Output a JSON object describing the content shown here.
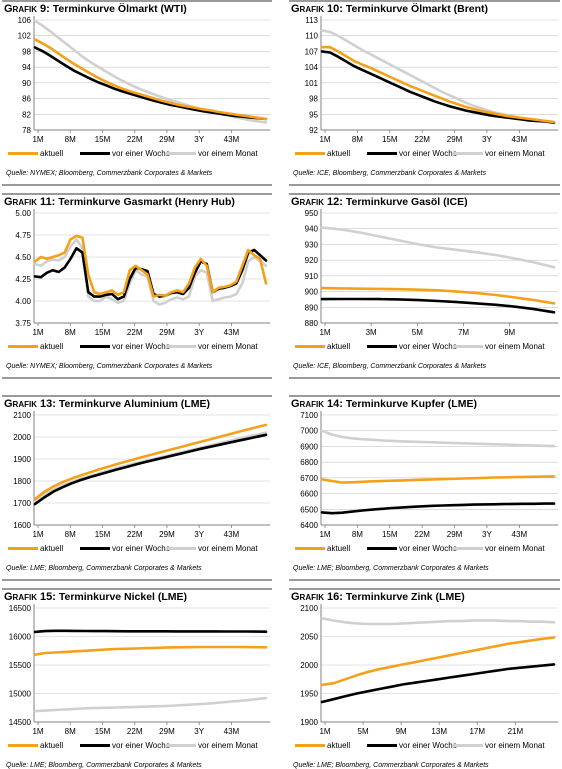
{
  "legend": {
    "current": "aktuell",
    "week": "vor einer Woche",
    "month": "vor einem Monat"
  },
  "colors": {
    "current": "#f5a01a",
    "week": "#000000",
    "month": "#d0d0d0",
    "axis": "#808080",
    "grid": "#c8c8c8"
  },
  "panels": [
    {
      "prefix": "Grafik 9:",
      "title": "Terminkurve Ölmarkt (WTI)",
      "source": "Quelle: NYMEX; Bloomberg, Commerzbank Corporates & Markets",
      "chart_data": {
        "type": "line",
        "x_ticks": [
          "1M",
          "8M",
          "15M",
          "22M",
          "29M",
          "3Y",
          "43M"
        ],
        "y_ticks": [
          "78",
          "82",
          "86",
          "90",
          "94",
          "98",
          "102",
          "106"
        ],
        "ylim": [
          78,
          106
        ],
        "series": [
          {
            "name": "aktuell",
            "values": [
              101.0,
              100.0,
              98.8,
              97.4,
              96.0,
              94.7,
              93.5,
              92.3,
              91.2,
              90.2,
              89.3,
              88.5,
              87.8,
              87.2,
              86.6,
              86.0,
              85.4,
              84.9,
              84.4,
              84.0,
              83.7,
              83.3,
              83.0,
              82.6,
              82.3,
              82.0,
              81.7,
              81.4,
              81.1,
              80.8
            ]
          },
          {
            "name": "vor einer Woche",
            "values": [
              99.0,
              98.0,
              96.8,
              95.5,
              94.2,
              93.0,
              92.0,
              91.0,
              90.1,
              89.3,
              88.5,
              87.8,
              87.2,
              86.6,
              86.0,
              85.4,
              84.9,
              84.4,
              84.0,
              83.6,
              83.2,
              82.8,
              82.5,
              82.2,
              81.9,
              81.6,
              81.4,
              81.2,
              81.0,
              80.8
            ]
          },
          {
            "name": "vor einem Monat",
            "values": [
              105.8,
              104.5,
              103.0,
              101.4,
              99.8,
              98.2,
              96.6,
              95.2,
              94.0,
              92.8,
              91.6,
              90.5,
              89.5,
              88.6,
              87.8,
              87.0,
              86.3,
              85.6,
              85.0,
              84.4,
              83.8,
              83.2,
              82.7,
              82.2,
              81.8,
              81.3,
              80.9,
              80.5,
              80.2,
              79.9
            ]
          }
        ]
      }
    },
    {
      "prefix": "Grafik 10:",
      "title": "Terminkurve Ölmarkt (Brent)",
      "source": "Quelle: ICE, Bloomberg, Commerzbank Corporates & Markets",
      "chart_data": {
        "type": "line",
        "x_ticks": [
          "1M",
          "8M",
          "15M",
          "22M",
          "29M",
          "3Y",
          "43M"
        ],
        "y_ticks": [
          "92",
          "95",
          "98",
          "101",
          "104",
          "107",
          "110",
          "113"
        ],
        "ylim": [
          92,
          113
        ],
        "series": [
          {
            "name": "aktuell",
            "values": [
              107.8,
              107.8,
              107.0,
              106.1,
              105.2,
              104.5,
              103.9,
              103.2,
              102.5,
              101.8,
              101.1,
              100.4,
              99.8,
              99.2,
              98.6,
              98.0,
              97.4,
              96.9,
              96.4,
              96.0,
              95.6,
              95.3,
              95.0,
              94.7,
              94.5,
              94.3,
              94.1,
              93.9,
              93.7,
              93.5
            ]
          },
          {
            "name": "vor einer Woche",
            "values": [
              107.0,
              106.8,
              106.0,
              105.1,
              104.2,
              103.5,
              102.8,
              102.1,
              101.4,
              100.7,
              100.0,
              99.3,
              98.7,
              98.1,
              97.5,
              97.0,
              96.5,
              96.1,
              95.7,
              95.4,
              95.1,
              94.8,
              94.6,
              94.4,
              94.2,
              94.0,
              93.8,
              93.7,
              93.6,
              93.4
            ]
          },
          {
            "name": "vor einem Monat",
            "values": [
              111.0,
              110.7,
              110.0,
              109.1,
              108.2,
              107.3,
              106.5,
              105.7,
              104.9,
              104.1,
              103.3,
              102.5,
              101.7,
              100.9,
              100.1,
              99.3,
              98.6,
              97.9,
              97.2,
              96.6,
              96.1,
              95.6,
              95.2,
              94.9,
              94.6,
              94.3,
              94.1,
              93.9,
              93.7,
              93.5
            ]
          }
        ]
      }
    },
    {
      "prefix": "Grafik 11:",
      "title": "Terminkurve Gasmarkt (Henry Hub)",
      "source": "Quelle: NYMEX; Bloomberg, Commerzbank Corporates & Markets",
      "chart_data": {
        "type": "line",
        "x_ticks": [
          "1M",
          "8M",
          "15M",
          "22M",
          "29M",
          "3Y",
          "43M"
        ],
        "y_ticks": [
          "3.75",
          "4.00",
          "4.25",
          "4.50",
          "4.75",
          "5.00"
        ],
        "ylim": [
          3.75,
          5.0
        ],
        "series": [
          {
            "name": "aktuell",
            "values": [
              4.45,
              4.5,
              4.48,
              4.5,
              4.52,
              4.55,
              4.7,
              4.74,
              4.72,
              4.3,
              4.1,
              4.08,
              4.1,
              4.12,
              4.07,
              4.1,
              4.35,
              4.4,
              4.35,
              4.3,
              4.05,
              4.07,
              4.06,
              4.1,
              4.12,
              4.1,
              4.2,
              4.38,
              4.48,
              4.4,
              4.1,
              4.15,
              4.16,
              4.18,
              4.22,
              4.4,
              4.58,
              4.52,
              4.48,
              4.2
            ]
          },
          {
            "name": "vor einer Woche",
            "values": [
              4.28,
              4.27,
              4.32,
              4.35,
              4.33,
              4.38,
              4.48,
              4.6,
              4.55,
              4.1,
              4.05,
              4.05,
              4.07,
              4.08,
              4.02,
              4.05,
              4.25,
              4.38,
              4.36,
              4.34,
              4.08,
              4.05,
              4.06,
              4.09,
              4.1,
              4.08,
              4.15,
              4.32,
              4.45,
              4.42,
              4.1,
              4.14,
              4.15,
              4.17,
              4.2,
              4.35,
              4.55,
              4.58,
              4.52,
              4.46
            ]
          },
          {
            "name": "vor einem Monat",
            "values": [
              4.42,
              4.4,
              4.45,
              4.47,
              4.46,
              4.5,
              4.62,
              4.7,
              4.6,
              4.05,
              4.0,
              4.0,
              4.05,
              4.02,
              3.98,
              4.0,
              4.2,
              4.35,
              4.3,
              4.28,
              4.0,
              3.96,
              3.98,
              4.02,
              4.04,
              4.02,
              4.05,
              4.28,
              4.35,
              4.32,
              4.0,
              4.02,
              4.04,
              4.05,
              4.08,
              4.2,
              4.45,
              4.5,
              4.45,
              4.4
            ]
          }
        ]
      }
    },
    {
      "prefix": "Grafik 12:",
      "title": "Terminkurve Gasöl (ICE)",
      "source": "Quelle: ICE, Bloomberg, Commerzbank Corporates & Markets",
      "chart_data": {
        "type": "line",
        "x_ticks": [
          "1M",
          "3M",
          "5M",
          "7M",
          "9M"
        ],
        "y_ticks": [
          "880",
          "890",
          "900",
          "910",
          "920",
          "930",
          "940",
          "950"
        ],
        "ylim": [
          880,
          950
        ],
        "series": [
          {
            "name": "aktuell",
            "values": [
              902.2,
              902.0,
              901.8,
              901.7,
              901.5,
              901.2,
              900.8,
              900.0,
              899.0,
              897.8,
              896.2,
              894.5,
              892.5
            ]
          },
          {
            "name": "vor einer Woche",
            "values": [
              895.2,
              895.3,
              895.3,
              895.2,
              895.0,
              894.6,
              894.0,
              893.3,
              892.5,
              891.6,
              890.4,
              888.8,
              886.8
            ]
          },
          {
            "name": "vor einem Monat",
            "values": [
              940.7,
              939.5,
              937.5,
              935.0,
              932.5,
              930.0,
              928.0,
              926.5,
              925.0,
              923.2,
              921.0,
              918.5,
              915.5
            ]
          }
        ]
      }
    },
    {
      "prefix": "Grafik 13:",
      "title": "Terminkurve Aluminium (LME)",
      "source": "Quelle: LME; Bloomberg, Commerzbank Corporates & Markets",
      "chart_data": {
        "type": "line",
        "x_ticks": [
          "1M",
          "8M",
          "15M",
          "22M",
          "29M",
          "3Y",
          "43M"
        ],
        "y_ticks": [
          "1600",
          "1700",
          "1800",
          "1900",
          "2000",
          "2100"
        ],
        "ylim": [
          1600,
          2100
        ],
        "series": [
          {
            "name": "aktuell",
            "values": [
              1718,
              1750,
              1775,
              1795,
              1812,
              1826,
              1840,
              1853,
              1866,
              1878,
              1890,
              1902,
              1913,
              1924,
              1935,
              1946,
              1957,
              1968,
              1979,
              1990,
              2001,
              2012,
              2023,
              2034,
              2045,
              2055
            ]
          },
          {
            "name": "vor einer Woche",
            "values": [
              1695,
              1725,
              1752,
              1772,
              1790,
              1805,
              1818,
              1830,
              1842,
              1854,
              1865,
              1876,
              1887,
              1897,
              1907,
              1917,
              1927,
              1937,
              1947,
              1956,
              1965,
              1974,
              1983,
              1992,
              2001,
              2010
            ]
          },
          {
            "name": "vor einem Monat",
            "values": [
              1705,
              1735,
              1760,
              1780,
              1797,
              1811,
              1824,
              1836,
              1848,
              1860,
              1871,
              1882,
              1892,
              1902,
              1912,
              1922,
              1932,
              1942,
              1952,
              1962,
              1972,
              1982,
              1992,
              2002,
              2011,
              2020
            ]
          }
        ]
      }
    },
    {
      "prefix": "Grafik 14:",
      "title": "Terminkurve Kupfer (LME)",
      "source": "Quelle: LME; Bloomberg, Commerzbank Corporates & Markets",
      "chart_data": {
        "type": "line",
        "x_ticks": [
          "1M",
          "8M",
          "15M",
          "22M",
          "29M",
          "3Y",
          "43M"
        ],
        "y_ticks": [
          "6400",
          "6500",
          "6600",
          "6700",
          "6800",
          "6900",
          "7000",
          "7100"
        ],
        "ylim": [
          6400,
          7100
        ],
        "series": [
          {
            "name": "aktuell",
            "values": [
              6690,
              6680,
              6670,
              6672,
              6675,
              6678,
              6680,
              6682,
              6684,
              6686,
              6688,
              6690,
              6692,
              6694,
              6696,
              6698,
              6700,
              6702,
              6703,
              6705,
              6706,
              6707,
              6708,
              6709
            ]
          },
          {
            "name": "vor einer Woche",
            "values": [
              6480,
              6475,
              6478,
              6485,
              6492,
              6498,
              6503,
              6508,
              6512,
              6516,
              6519,
              6522,
              6524,
              6526,
              6528,
              6530,
              6531,
              6532,
              6533,
              6534,
              6535,
              6535,
              6536,
              6536
            ]
          },
          {
            "name": "vor einem Monat",
            "values": [
              7000,
              6975,
              6960,
              6952,
              6946,
              6942,
              6938,
              6935,
              6932,
              6930,
              6928,
              6926,
              6924,
              6922,
              6920,
              6918,
              6916,
              6914,
              6912,
              6910,
              6908,
              6906,
              6904,
              6902
            ]
          }
        ]
      }
    },
    {
      "prefix": "Grafik 15:",
      "title": "Terminkurve Nickel (LME)",
      "source": "Quelle: LME; Bloomberg, Commerzbank Corporates & Markets",
      "chart_data": {
        "type": "line",
        "x_ticks": [
          "1M",
          "8M",
          "15M",
          "22M",
          "29M",
          "3Y",
          "43M"
        ],
        "y_ticks": [
          "14500",
          "15000",
          "15500",
          "16000",
          "16500"
        ],
        "ylim": [
          14500,
          16500
        ],
        "series": [
          {
            "name": "aktuell",
            "values": [
              15680,
              15710,
              15720,
              15730,
              15740,
              15750,
              15760,
              15770,
              15780,
              15785,
              15790,
              15795,
              15800,
              15805,
              15810,
              15812,
              15814,
              15815,
              15816,
              15816,
              15815,
              15814,
              15812,
              15810
            ]
          },
          {
            "name": "vor einer Woche",
            "values": [
              16080,
              16095,
              16100,
              16100,
              16098,
              16096,
              16095,
              16094,
              16093,
              16092,
              16092,
              16092,
              16091,
              16091,
              16090,
              16090,
              16090,
              16089,
              16089,
              16088,
              16088,
              16087,
              16086,
              16085
            ]
          },
          {
            "name": "vor einem Monat",
            "values": [
              14690,
              14700,
              14710,
              14720,
              14730,
              14740,
              14745,
              14750,
              14755,
              14760,
              14765,
              14770,
              14775,
              14780,
              14790,
              14800,
              14810,
              14820,
              14835,
              14850,
              14865,
              14880,
              14900,
              14920
            ]
          }
        ]
      }
    },
    {
      "prefix": "Grafik 16:",
      "title": "Terminkurve Zink (LME)",
      "source": "Quelle: LME; Bloomberg, Commerzbank Corporates & Markets",
      "chart_data": {
        "type": "line",
        "x_ticks": [
          "1M",
          "5M",
          "9M",
          "13M",
          "17M",
          "21M"
        ],
        "y_ticks": [
          "1900",
          "1950",
          "2000",
          "2050",
          "2100"
        ],
        "ylim": [
          1900,
          2100
        ],
        "series": [
          {
            "name": "aktuell",
            "values": [
              1965,
              1968,
              1975,
              1982,
              1988,
              1993,
              1997,
              2001,
              2005,
              2009,
              2013,
              2017,
              2021,
              2025,
              2029,
              2033,
              2037,
              2040,
              2043,
              2046,
              2048
            ]
          },
          {
            "name": "vor einer Woche",
            "values": [
              1935,
              1940,
              1945,
              1950,
              1954,
              1958,
              1962,
              1966,
              1969,
              1972,
              1975,
              1978,
              1981,
              1984,
              1987,
              1990,
              1993,
              1995,
              1997,
              1999,
              2001
            ]
          },
          {
            "name": "vor einem Monat",
            "values": [
              2082,
              2078,
              2075,
              2073,
              2072,
              2072,
              2072,
              2073,
              2074,
              2075,
              2076,
              2077,
              2077,
              2078,
              2078,
              2078,
              2077,
              2077,
              2076,
              2076,
              2075
            ]
          }
        ]
      }
    }
  ]
}
